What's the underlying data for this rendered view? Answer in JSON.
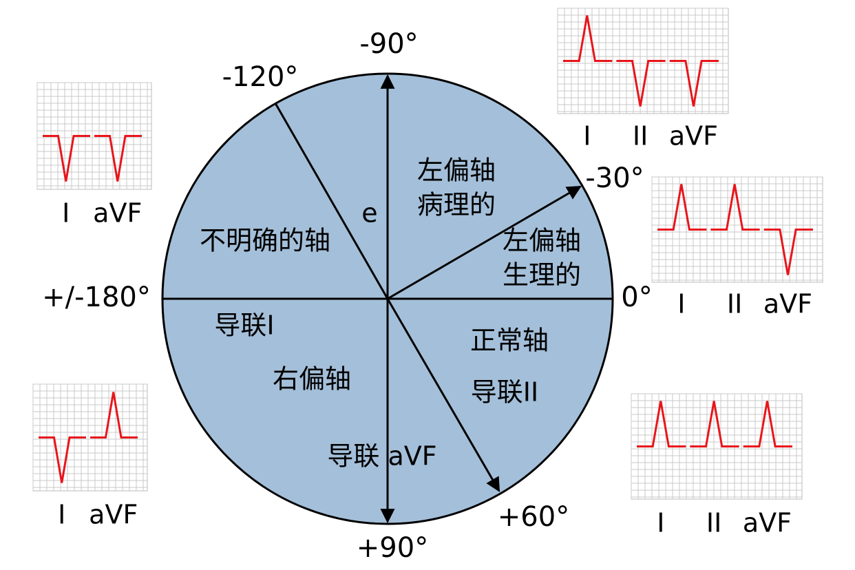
{
  "axis_labels": [
    "-90°",
    "-120°",
    "-30°",
    "0°",
    "+/-180°",
    "+60°",
    "+90°"
  ],
  "regions": [
    {
      "lines": [
        "左偏轴",
        "病理的"
      ]
    },
    {
      "lines": [
        "e"
      ]
    },
    {
      "lines": [
        "左偏轴",
        "生理的"
      ]
    },
    {
      "lines": [
        "不明确的轴"
      ]
    },
    {
      "lines": [
        "导联I"
      ]
    },
    {
      "lines": [
        "右偏轴"
      ]
    },
    {
      "lines": [
        "导联 aVF"
      ]
    },
    {
      "lines": [
        "正常轴"
      ]
    },
    {
      "lines": [
        "导联II"
      ]
    }
  ],
  "ecg_panels": [
    {
      "leads": [
        "I",
        "aVF"
      ]
    },
    {
      "leads": [
        "I",
        "aVF"
      ]
    },
    {
      "leads": [
        "I",
        "II",
        "aVF"
      ]
    },
    {
      "leads": [
        "I",
        "II",
        "aVF"
      ]
    },
    {
      "leads": [
        "I",
        "II",
        "aVF"
      ]
    }
  ]
}
